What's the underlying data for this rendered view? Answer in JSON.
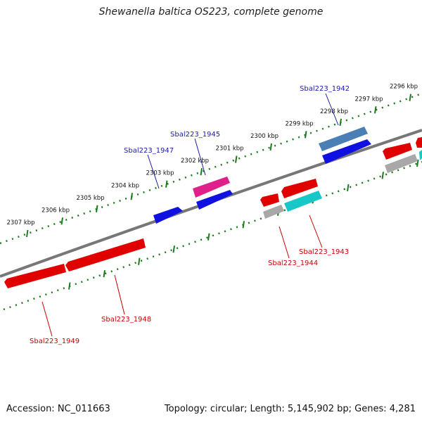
{
  "title": "Shewanella baltica OS223, complete genome",
  "footer": {
    "accession": "Accession: NC_011663",
    "summary": "Topology: circular; Length: 5,145,902 bp; Genes: 4,281"
  },
  "ticks": [
    {
      "label": "2296 kbp",
      "kbp": 2296
    },
    {
      "label": "2297 kbp",
      "kbp": 2297
    },
    {
      "label": "2298 kbp",
      "kbp": 2298
    },
    {
      "label": "2299 kbp",
      "kbp": 2299
    },
    {
      "label": "2300 kbp",
      "kbp": 2300
    },
    {
      "label": "2301 kbp",
      "kbp": 2301
    },
    {
      "label": "2302 kbp",
      "kbp": 2302
    },
    {
      "label": "2303 kbp",
      "kbp": 2303
    },
    {
      "label": "2304 kbp",
      "kbp": 2304
    },
    {
      "label": "2305 kbp",
      "kbp": 2305
    },
    {
      "label": "2306 kbp",
      "kbp": 2306
    },
    {
      "label": "2307 kbp",
      "kbp": 2307
    }
  ],
  "gene_labels": [
    {
      "label": "Sbal223_1942",
      "color": "#1a1aaa"
    },
    {
      "label": "Sbal223_1945",
      "color": "#1a1aaa"
    },
    {
      "label": "Sbal223_1947",
      "color": "#1a1aaa"
    },
    {
      "label": "Sbal223_1943",
      "color": "#cc0000"
    },
    {
      "label": "Sbal223_1944",
      "color": "#cc0000"
    },
    {
      "label": "Sbal223_1948",
      "color": "#cc0000"
    },
    {
      "label": "Sbal223_1949",
      "color": "#cc0000"
    }
  ],
  "colors": {
    "backbone": "#777777",
    "tick": "#1e7a1e",
    "forward_cds": "#1010e0",
    "forward_cds_alt": "#4a7fb5",
    "forward_pink": "#e0208a",
    "reverse_cds": "#e00000",
    "reverse_cyan": "#18c8c8",
    "reverse_gray": "#a8a8a8"
  }
}
